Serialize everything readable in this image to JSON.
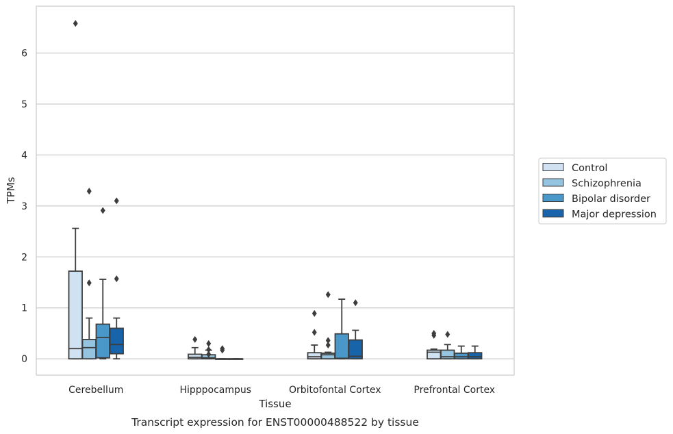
{
  "caption": "Transcript expression for ENST00000488522 by tissue",
  "chart_data": {
    "type": "box",
    "xlabel": "Tissue",
    "ylabel": "TPMs",
    "ylim": [
      -0.32,
      6.92
    ],
    "yticks": [
      0,
      1,
      2,
      3,
      4,
      5,
      6
    ],
    "grid": "horizontal",
    "legend_position": "right",
    "categories": [
      "Cerebellum",
      "Hipppocampus",
      "Orbitofontal Cortex",
      "Prefrontal Cortex"
    ],
    "series": [
      {
        "name": "Control",
        "color": "#d0e1f2",
        "boxes": [
          {
            "q1": 0.0,
            "median": 0.2,
            "q3": 1.72,
            "whisker_low": 0.0,
            "whisker_high": 2.56,
            "outliers": [
              6.58
            ]
          },
          {
            "q1": 0.0,
            "median": 0.03,
            "q3": 0.09,
            "whisker_low": 0.0,
            "whisker_high": 0.22,
            "outliers": [
              0.38
            ]
          },
          {
            "q1": 0.0,
            "median": 0.04,
            "q3": 0.12,
            "whisker_low": 0.0,
            "whisker_high": 0.27,
            "outliers": [
              0.52,
              0.89
            ]
          },
          {
            "q1": 0.0,
            "median": 0.13,
            "q3": 0.17,
            "whisker_low": 0.0,
            "whisker_high": 0.19,
            "outliers": [
              0.46,
              0.5
            ]
          }
        ]
      },
      {
        "name": "Schizophrenia",
        "color": "#94c4df",
        "boxes": [
          {
            "q1": 0.0,
            "median": 0.22,
            "q3": 0.38,
            "whisker_low": 0.0,
            "whisker_high": 0.8,
            "outliers": [
              1.49,
              3.29
            ]
          },
          {
            "q1": 0.0,
            "median": 0.02,
            "q3": 0.08,
            "whisker_low": 0.0,
            "whisker_high": 0.17,
            "outliers": [
              0.09,
              0.18,
              0.3
            ]
          },
          {
            "q1": 0.0,
            "median": 0.08,
            "q3": 0.11,
            "whisker_low": 0.0,
            "whisker_high": 0.13,
            "outliers": [
              0.27,
              0.36,
              1.26
            ]
          },
          {
            "q1": 0.0,
            "median": 0.04,
            "q3": 0.17,
            "whisker_low": 0.0,
            "whisker_high": 0.28,
            "outliers": [
              0.48
            ]
          }
        ]
      },
      {
        "name": "Bipolar disorder",
        "color": "#4a98c9",
        "boxes": [
          {
            "q1": 0.02,
            "median": 0.42,
            "q3": 0.68,
            "whisker_low": 0.0,
            "whisker_high": 1.56,
            "outliers": [
              2.91
            ]
          },
          {
            "q1": 0.0,
            "median": 0.0,
            "q3": 0.0,
            "whisker_low": 0.0,
            "whisker_high": 0.0,
            "outliers": [
              0.17,
              0.2
            ]
          },
          {
            "q1": 0.0,
            "median": 0.01,
            "q3": 0.49,
            "whisker_low": 0.0,
            "whisker_high": 1.17,
            "outliers": []
          },
          {
            "q1": 0.0,
            "median": 0.04,
            "q3": 0.11,
            "whisker_low": 0.0,
            "whisker_high": 0.25,
            "outliers": []
          }
        ]
      },
      {
        "name": "Major depression",
        "color": "#1764ab",
        "boxes": [
          {
            "q1": 0.1,
            "median": 0.28,
            "q3": 0.6,
            "whisker_low": 0.0,
            "whisker_high": 0.8,
            "outliers": [
              1.57,
              3.1
            ]
          },
          {
            "q1": 0.0,
            "median": 0.0,
            "q3": 0.0,
            "whisker_low": 0.0,
            "whisker_high": 0.0,
            "outliers": []
          },
          {
            "q1": 0.0,
            "median": 0.05,
            "q3": 0.37,
            "whisker_low": 0.0,
            "whisker_high": 0.56,
            "outliers": [
              1.1
            ]
          },
          {
            "q1": 0.0,
            "median": 0.04,
            "q3": 0.12,
            "whisker_low": 0.0,
            "whisker_high": 0.25,
            "outliers": []
          }
        ]
      }
    ]
  }
}
